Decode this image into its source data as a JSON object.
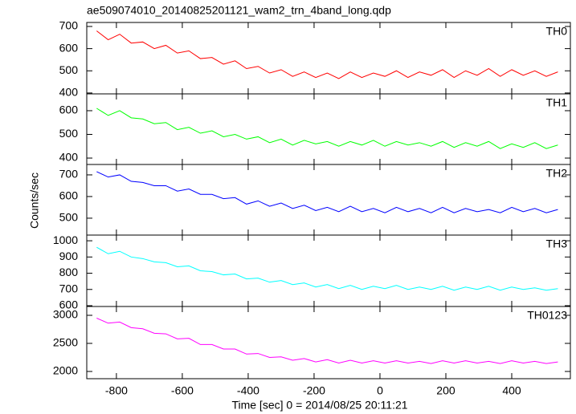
{
  "title": "ae509074010_20140825201121_wam2_trn_4band_long.qdp",
  "ylabel": "Counts/sec",
  "xlabel": "Time [sec] 0 = 2014/08/25 20:11:21",
  "chart_data": [
    {
      "type": "line",
      "xlim": [
        -890,
        578
      ],
      "xticks": [
        -800,
        -600,
        -400,
        -200,
        0,
        200,
        400
      ],
      "ylim": [
        396,
        718
      ],
      "yticks": [
        400,
        500,
        600,
        700
      ],
      "x": [
        -860,
        -825,
        -790,
        -755,
        -720,
        -685,
        -650,
        -615,
        -580,
        -545,
        -510,
        -475,
        -440,
        -405,
        -370,
        -335,
        -300,
        -265,
        -230,
        -195,
        -160,
        -125,
        -90,
        -55,
        -20,
        15,
        50,
        85,
        120,
        155,
        190,
        225,
        260,
        295,
        330,
        365,
        400,
        435,
        470,
        505,
        540
      ],
      "series": [
        {
          "name": "TH0",
          "color": "#ff0000",
          "values": [
            680,
            640,
            665,
            625,
            630,
            600,
            615,
            580,
            590,
            555,
            560,
            530,
            545,
            510,
            520,
            490,
            505,
            475,
            495,
            470,
            490,
            465,
            495,
            470,
            490,
            475,
            500,
            470,
            495,
            480,
            505,
            470,
            500,
            480,
            510,
            475,
            505,
            480,
            500,
            475,
            495
          ]
        }
      ]
    },
    {
      "type": "line",
      "xlim": [
        -890,
        578
      ],
      "xticks": [
        -800,
        -600,
        -400,
        -200,
        0,
        200,
        400
      ],
      "ylim": [
        373,
        671
      ],
      "yticks": [
        400,
        500,
        600
      ],
      "x": [
        -860,
        -825,
        -790,
        -755,
        -720,
        -685,
        -650,
        -615,
        -580,
        -545,
        -510,
        -475,
        -440,
        -405,
        -370,
        -335,
        -300,
        -265,
        -230,
        -195,
        -160,
        -125,
        -90,
        -55,
        -20,
        15,
        50,
        85,
        120,
        155,
        190,
        225,
        260,
        295,
        330,
        365,
        400,
        435,
        470,
        505,
        540
      ],
      "series": [
        {
          "name": "TH1",
          "color": "#00ff00",
          "values": [
            610,
            580,
            600,
            570,
            565,
            545,
            550,
            520,
            530,
            505,
            515,
            490,
            500,
            480,
            490,
            465,
            480,
            455,
            475,
            460,
            470,
            450,
            470,
            455,
            475,
            450,
            470,
            455,
            465,
            450,
            470,
            445,
            465,
            450,
            470,
            440,
            460,
            445,
            465,
            440,
            455
          ]
        }
      ]
    },
    {
      "type": "line",
      "xlim": [
        -890,
        578
      ],
      "xticks": [
        -800,
        -600,
        -400,
        -200,
        0,
        200,
        400
      ],
      "ylim": [
        422,
        748
      ],
      "yticks": [
        500,
        600,
        700
      ],
      "x": [
        -860,
        -825,
        -790,
        -755,
        -720,
        -685,
        -650,
        -615,
        -580,
        -545,
        -510,
        -475,
        -440,
        -405,
        -370,
        -335,
        -300,
        -265,
        -230,
        -195,
        -160,
        -125,
        -90,
        -55,
        -20,
        15,
        50,
        85,
        120,
        155,
        190,
        225,
        260,
        295,
        330,
        365,
        400,
        435,
        470,
        505,
        540
      ],
      "series": [
        {
          "name": "TH2",
          "color": "#0000ff",
          "values": [
            715,
            690,
            700,
            670,
            665,
            650,
            650,
            625,
            635,
            610,
            610,
            590,
            595,
            565,
            580,
            555,
            570,
            545,
            560,
            535,
            550,
            530,
            555,
            530,
            545,
            525,
            550,
            530,
            545,
            525,
            550,
            525,
            545,
            530,
            540,
            525,
            550,
            530,
            545,
            525,
            540
          ]
        }
      ]
    },
    {
      "type": "line",
      "xlim": [
        -890,
        578
      ],
      "xticks": [
        -800,
        -600,
        -400,
        -200,
        0,
        200,
        400
      ],
      "ylim": [
        595,
        1035
      ],
      "yticks": [
        600,
        700,
        800,
        900,
        1000
      ],
      "x": [
        -860,
        -825,
        -790,
        -755,
        -720,
        -685,
        -650,
        -615,
        -580,
        -545,
        -510,
        -475,
        -440,
        -405,
        -370,
        -335,
        -300,
        -265,
        -230,
        -195,
        -160,
        -125,
        -90,
        -55,
        -20,
        15,
        50,
        85,
        120,
        155,
        190,
        225,
        260,
        295,
        330,
        365,
        400,
        435,
        470,
        505,
        540
      ],
      "series": [
        {
          "name": "TH3",
          "color": "#00ffff",
          "values": [
            960,
            920,
            935,
            900,
            890,
            870,
            865,
            840,
            845,
            815,
            810,
            790,
            795,
            765,
            770,
            745,
            755,
            730,
            740,
            715,
            730,
            705,
            725,
            700,
            720,
            705,
            725,
            700,
            715,
            700,
            720,
            695,
            715,
            700,
            720,
            695,
            715,
            700,
            710,
            695,
            705
          ]
        }
      ]
    },
    {
      "type": "line",
      "xlim": [
        -890,
        578
      ],
      "xticks": [
        -800,
        -600,
        -400,
        -200,
        0,
        200,
        400
      ],
      "ylim": [
        1871,
        3157
      ],
      "yticks": [
        2000,
        2500,
        3000
      ],
      "x": [
        -860,
        -825,
        -790,
        -755,
        -720,
        -685,
        -650,
        -615,
        -580,
        -545,
        -510,
        -475,
        -440,
        -405,
        -370,
        -335,
        -300,
        -265,
        -230,
        -195,
        -160,
        -125,
        -90,
        -55,
        -20,
        15,
        50,
        85,
        120,
        155,
        190,
        225,
        260,
        295,
        330,
        365,
        400,
        435,
        470,
        505,
        540
      ],
      "series": [
        {
          "name": "TH0123",
          "color": "#ff00ff",
          "values": [
            2950,
            2860,
            2880,
            2780,
            2760,
            2680,
            2670,
            2580,
            2590,
            2480,
            2480,
            2400,
            2400,
            2310,
            2320,
            2250,
            2260,
            2200,
            2230,
            2170,
            2210,
            2150,
            2200,
            2150,
            2190,
            2150,
            2190,
            2150,
            2180,
            2140,
            2190,
            2150,
            2190,
            2150,
            2180,
            2140,
            2190,
            2150,
            2180,
            2140,
            2170
          ]
        }
      ]
    }
  ]
}
